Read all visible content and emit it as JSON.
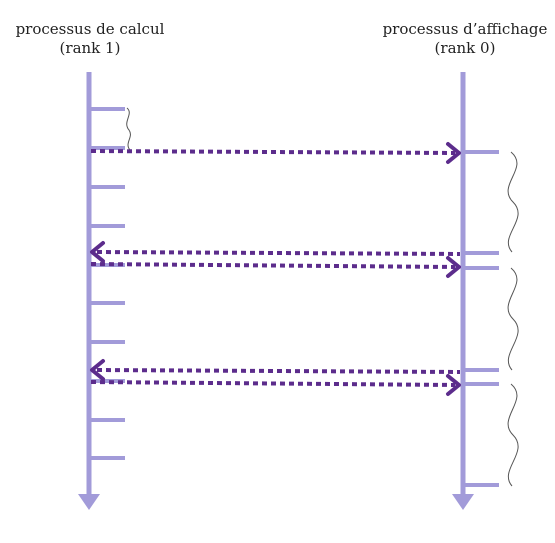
{
  "colors": {
    "timeline": "#a29bd9",
    "message": "#5c2c8c",
    "brace": "#555555",
    "text": "#222222"
  },
  "processes": [
    {
      "id": "left",
      "name": "processus de calcul",
      "rank": "(rank 1)"
    },
    {
      "id": "right",
      "name": "processus d’affichage",
      "rank": "(rank 0)"
    }
  ],
  "messages": [
    {
      "from": "rank 1",
      "to": "rank 0"
    },
    {
      "from": "rank 0",
      "to": "rank 1"
    },
    {
      "from": "rank 1",
      "to": "rank 0"
    },
    {
      "from": "rank 0",
      "to": "rank 1"
    },
    {
      "from": "rank 1",
      "to": "rank 0"
    }
  ]
}
